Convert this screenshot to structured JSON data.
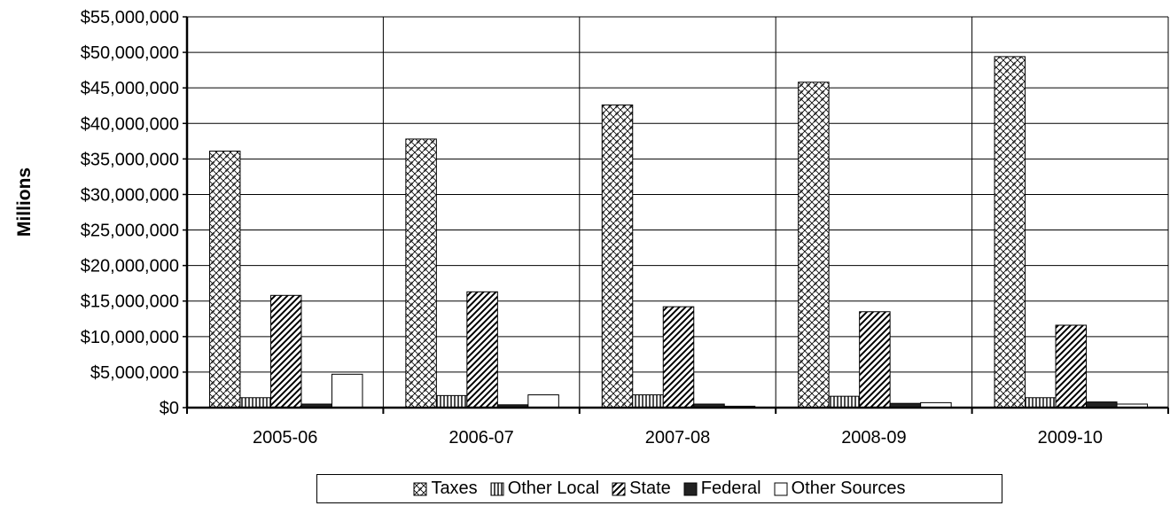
{
  "chart_data": {
    "type": "bar",
    "ylabel": "Millions",
    "xlabel": "",
    "categories": [
      "2005-06",
      "2006-07",
      "2007-08",
      "2008-09",
      "2009-10"
    ],
    "ylim": [
      0,
      55000000
    ],
    "yticks": [
      0,
      5000000,
      10000000,
      15000000,
      20000000,
      25000000,
      30000000,
      35000000,
      40000000,
      45000000,
      50000000,
      55000000
    ],
    "ytick_labels": [
      "$0",
      "$5,000,000",
      "$10,000,000",
      "$15,000,000",
      "$20,000,000",
      "$25,000,000",
      "$30,000,000",
      "$35,000,000",
      "$40,000,000",
      "$45,000,000",
      "$50,000,000",
      "$55,000,000"
    ],
    "grid": true,
    "legend_position": "bottom",
    "series": [
      {
        "name": "Taxes",
        "pattern": "crosshatch",
        "values": [
          36100000,
          37800000,
          42600000,
          45800000,
          49400000
        ]
      },
      {
        "name": "Other Local",
        "pattern": "vertical",
        "values": [
          1400000,
          1700000,
          1800000,
          1600000,
          1400000
        ]
      },
      {
        "name": "State",
        "pattern": "diagonal",
        "values": [
          15800000,
          16300000,
          14200000,
          13500000,
          11600000
        ]
      },
      {
        "name": "Federal",
        "pattern": "solid-dark",
        "values": [
          500000,
          400000,
          500000,
          600000,
          800000
        ]
      },
      {
        "name": "Other Sources",
        "pattern": "empty",
        "values": [
          4700000,
          1800000,
          200000,
          700000,
          500000
        ]
      }
    ]
  }
}
